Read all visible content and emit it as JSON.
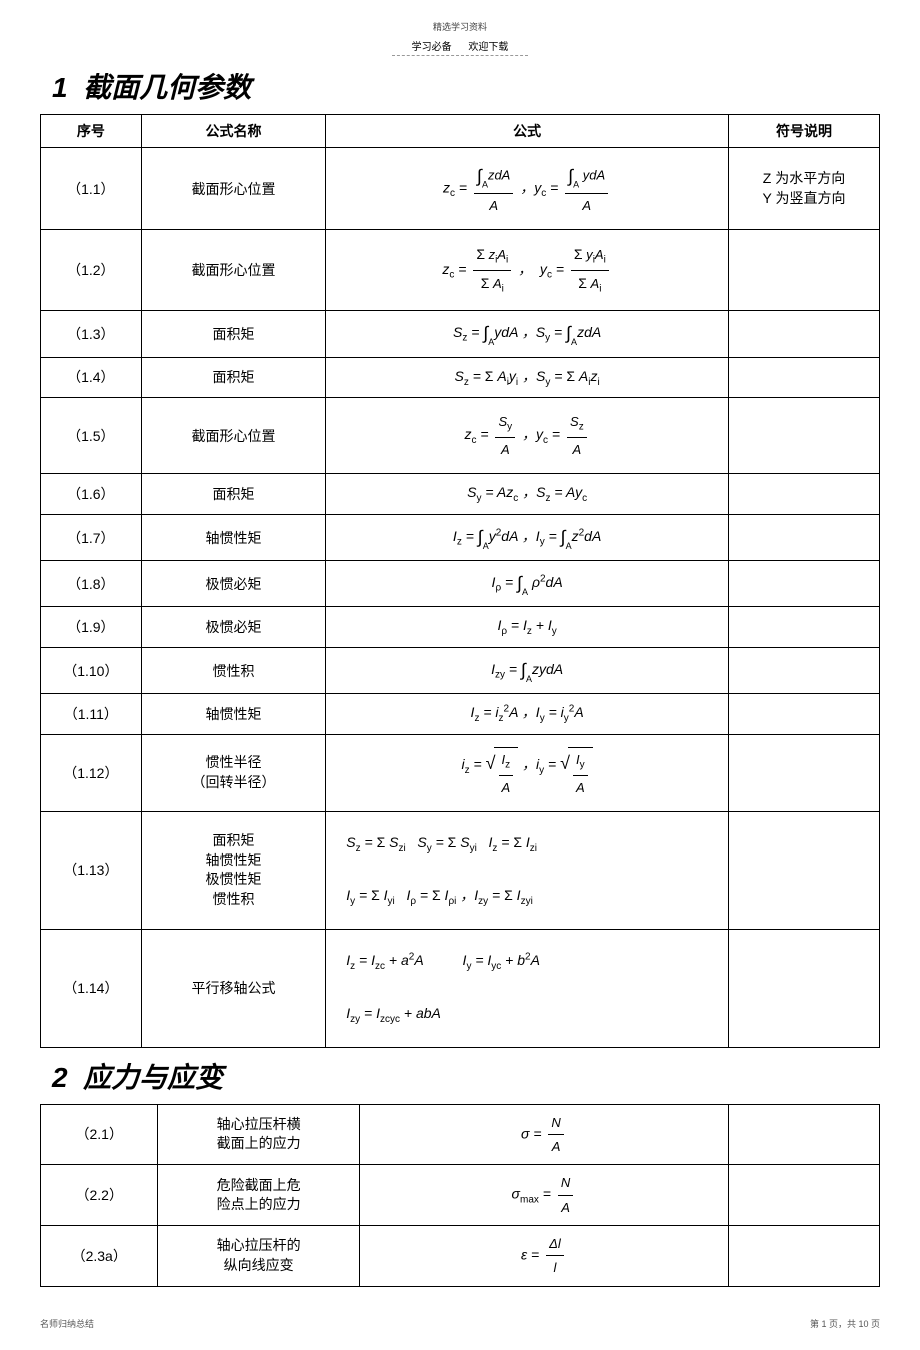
{
  "header": {
    "topText": "精选学习资料",
    "dashLeft": "学习必备",
    "dashRight": "欢迎下载"
  },
  "section1": {
    "num": "1",
    "title": "截面几何参数",
    "columns": [
      "序号",
      "公式名称",
      "公式",
      "符号说明"
    ],
    "rows": [
      {
        "num": "（1.1）",
        "name": "截面形心位置",
        "desc_lines": [
          "Z 为水平方向",
          "Y 为竖直方向"
        ]
      },
      {
        "num": "（1.2）",
        "name": "截面形心位置"
      },
      {
        "num": "（1.3）",
        "name": "面积矩"
      },
      {
        "num": "（1.4）",
        "name": "面积矩"
      },
      {
        "num": "（1.5）",
        "name": "截面形心位置"
      },
      {
        "num": "（1.6）",
        "name": "面积矩"
      },
      {
        "num": "（1.7）",
        "name": "轴惯性矩"
      },
      {
        "num": "（1.8）",
        "name": "极惯必矩"
      },
      {
        "num": "（1.9）",
        "name": "极惯必矩"
      },
      {
        "num": "（1.10）",
        "name": "惯性积"
      },
      {
        "num": "（1.11）",
        "name": "轴惯性矩"
      },
      {
        "num": "（1.12）",
        "name_lines": [
          "惯性半径",
          "（回转半径）"
        ]
      },
      {
        "num": "（1.13）",
        "name_lines": [
          "面积矩",
          "轴惯性矩",
          "极惯性矩",
          "惯性积"
        ]
      },
      {
        "num": "（1.14）",
        "name": "平行移轴公式"
      }
    ]
  },
  "section2": {
    "num": "2",
    "title": "应力与应变",
    "rows": [
      {
        "num": "（2.1）",
        "name_lines": [
          "轴心拉压杆横",
          "截面上的应力"
        ]
      },
      {
        "num": "（2.2）",
        "name_lines": [
          "危险截面上危",
          "险点上的应力"
        ]
      },
      {
        "num": "（2.3a）",
        "name_lines": [
          "轴心拉压杆的",
          "纵向线应变"
        ]
      }
    ]
  },
  "footer": {
    "left": "名师归纳总结",
    "right": "第 1 页，共 10 页"
  },
  "symbols": {
    "zc": "z",
    "yc": "y",
    "A": "A",
    "Sy": "S",
    "Sz": "S",
    "Iz": "I",
    "Iy": "I",
    "Ip": "I",
    "iz": "i",
    "iy": "i",
    "sigma": "σ",
    "N": "N",
    "eps": "ε",
    "dl": "Δl",
    "l": "l",
    "max": "max"
  }
}
